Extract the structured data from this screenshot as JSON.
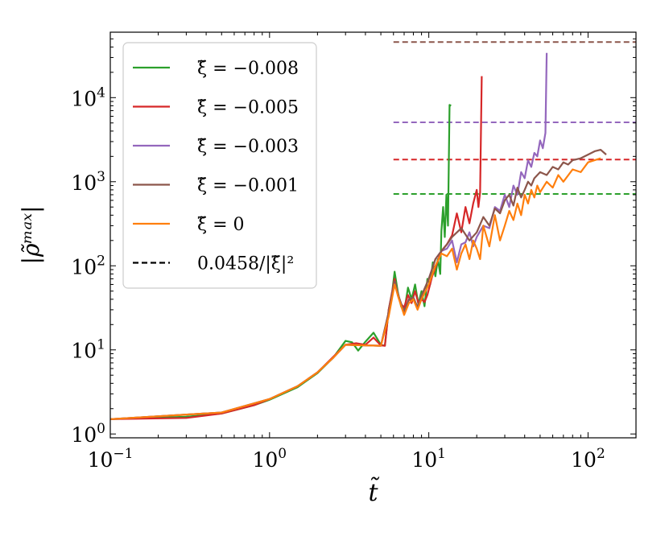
{
  "chart_data": {
    "type": "line",
    "title": "",
    "xlabel": "t̃",
    "ylabel": "|ρ̃ᵐᵃˣ|",
    "xscale": "log",
    "yscale": "log",
    "xlim": [
      0.1,
      200
    ],
    "ylim": [
      0.9,
      60000
    ],
    "grid": false,
    "legend_position": "top-left",
    "x_ticks": [
      {
        "value": 0.1,
        "base": "10",
        "exp": "−1"
      },
      {
        "value": 1,
        "base": "10",
        "exp": "0"
      },
      {
        "value": 10,
        "base": "10",
        "exp": "1"
      },
      {
        "value": 100,
        "base": "10",
        "exp": "2"
      }
    ],
    "y_ticks": [
      {
        "value": 1,
        "base": "10",
        "exp": "0"
      },
      {
        "value": 10,
        "base": "10",
        "exp": "1"
      },
      {
        "value": 100,
        "base": "10",
        "exp": "2"
      },
      {
        "value": 1000,
        "base": "10",
        "exp": "3"
      },
      {
        "value": 10000,
        "base": "10",
        "exp": "4"
      }
    ],
    "series": [
      {
        "name": "ξ̃ = −0.008",
        "color": "#2ca02c",
        "style": "solid",
        "points": [
          [
            0.1,
            1.5
          ],
          [
            0.3,
            1.6
          ],
          [
            0.5,
            1.75
          ],
          [
            0.8,
            2.2
          ],
          [
            1,
            2.55
          ],
          [
            1.5,
            3.6
          ],
          [
            2,
            5.3
          ],
          [
            2.5,
            8.0
          ],
          [
            3,
            12.8
          ],
          [
            3.3,
            12.3
          ],
          [
            3.6,
            9.8
          ],
          [
            4,
            12.5
          ],
          [
            4.5,
            16.0
          ],
          [
            5,
            11.5
          ],
          [
            5.3,
            11.2
          ],
          [
            5.6,
            30
          ],
          [
            5.9,
            50
          ],
          [
            6.1,
            85
          ],
          [
            6.4,
            48
          ],
          [
            6.7,
            33
          ],
          [
            7,
            28
          ],
          [
            7.4,
            55
          ],
          [
            7.8,
            40
          ],
          [
            8.2,
            60
          ],
          [
            8.6,
            35
          ],
          [
            9,
            50
          ],
          [
            9.4,
            33
          ],
          [
            9.8,
            70
          ],
          [
            10.2,
            60
          ],
          [
            10.6,
            110
          ],
          [
            11,
            75
          ],
          [
            11.4,
            120
          ],
          [
            11.8,
            80
          ],
          [
            12,
            260
          ],
          [
            12.3,
            500
          ],
          [
            12.6,
            220
          ],
          [
            12.9,
            700
          ],
          [
            13.2,
            300
          ],
          [
            13.5,
            8200
          ],
          [
            13.8,
            8000
          ]
        ]
      },
      {
        "name": "ξ̃ = −0.005",
        "color": "#d62728",
        "style": "solid",
        "points": [
          [
            0.1,
            1.5
          ],
          [
            0.3,
            1.55
          ],
          [
            0.5,
            1.75
          ],
          [
            0.8,
            2.2
          ],
          [
            1,
            2.6
          ],
          [
            1.5,
            3.7
          ],
          [
            2,
            5.4
          ],
          [
            2.5,
            8.2
          ],
          [
            3,
            11.5
          ],
          [
            3.5,
            12.0
          ],
          [
            4,
            11.5
          ],
          [
            4.5,
            14.0
          ],
          [
            5,
            11.3
          ],
          [
            5.3,
            11.2
          ],
          [
            5.6,
            30
          ],
          [
            5.9,
            50
          ],
          [
            6.1,
            70
          ],
          [
            6.4,
            44
          ],
          [
            6.7,
            35
          ],
          [
            7,
            32
          ],
          [
            7.4,
            45
          ],
          [
            7.8,
            36
          ],
          [
            8.2,
            50
          ],
          [
            8.6,
            36
          ],
          [
            9,
            40
          ],
          [
            9.4,
            37
          ],
          [
            9.8,
            45
          ],
          [
            10.5,
            75
          ],
          [
            11,
            95
          ],
          [
            12,
            150
          ],
          [
            13,
            180
          ],
          [
            14,
            230
          ],
          [
            15,
            420
          ],
          [
            16,
            250
          ],
          [
            17,
            500
          ],
          [
            18,
            320
          ],
          [
            19,
            550
          ],
          [
            20,
            800
          ],
          [
            20.5,
            500
          ],
          [
            21,
            750
          ],
          [
            21.5,
            18000
          ]
        ]
      },
      {
        "name": "ξ̃ = −0.003",
        "color": "#9467bd",
        "style": "solid",
        "points": [
          [
            0.1,
            1.5
          ],
          [
            0.5,
            1.8
          ],
          [
            1,
            2.6
          ],
          [
            1.5,
            3.7
          ],
          [
            2,
            5.4
          ],
          [
            2.5,
            8.0
          ],
          [
            3,
            11.5
          ],
          [
            4,
            11.3
          ],
          [
            5,
            11.2
          ],
          [
            5.6,
            28
          ],
          [
            6.1,
            65
          ],
          [
            6.5,
            42
          ],
          [
            7,
            28
          ],
          [
            7.5,
            40
          ],
          [
            8,
            42
          ],
          [
            8.5,
            32
          ],
          [
            9,
            44
          ],
          [
            10,
            70
          ],
          [
            11,
            120
          ],
          [
            12,
            150
          ],
          [
            13,
            160
          ],
          [
            14,
            200
          ],
          [
            15,
            110
          ],
          [
            16,
            180
          ],
          [
            17,
            190
          ],
          [
            18,
            250
          ],
          [
            19,
            170
          ],
          [
            20,
            220
          ],
          [
            22,
            300
          ],
          [
            24,
            280
          ],
          [
            26,
            500
          ],
          [
            28,
            450
          ],
          [
            30,
            700
          ],
          [
            32,
            500
          ],
          [
            34,
            900
          ],
          [
            36,
            700
          ],
          [
            38,
            1300
          ],
          [
            40,
            1100
          ],
          [
            42,
            1800
          ],
          [
            44,
            1500
          ],
          [
            46,
            2200
          ],
          [
            48,
            2000
          ],
          [
            50,
            3100
          ],
          [
            52,
            2500
          ],
          [
            54,
            3800
          ],
          [
            55,
            34000
          ]
        ]
      },
      {
        "name": "ξ̃ = −0.001",
        "color": "#8c564b",
        "style": "solid",
        "points": [
          [
            0.1,
            1.5
          ],
          [
            0.5,
            1.8
          ],
          [
            1,
            2.6
          ],
          [
            1.5,
            3.7
          ],
          [
            2,
            5.4
          ],
          [
            2.5,
            8.0
          ],
          [
            3,
            11.5
          ],
          [
            4,
            11.3
          ],
          [
            5,
            11.2
          ],
          [
            5.6,
            28
          ],
          [
            6.1,
            65
          ],
          [
            6.5,
            42
          ],
          [
            7,
            28
          ],
          [
            7.5,
            40
          ],
          [
            8,
            42
          ],
          [
            8.5,
            32
          ],
          [
            9,
            44
          ],
          [
            10,
            70
          ],
          [
            11,
            120
          ],
          [
            12,
            150
          ],
          [
            13,
            180
          ],
          [
            14,
            220
          ],
          [
            16,
            280
          ],
          [
            18,
            200
          ],
          [
            20,
            250
          ],
          [
            22,
            380
          ],
          [
            24,
            300
          ],
          [
            26,
            480
          ],
          [
            28,
            420
          ],
          [
            30,
            600
          ],
          [
            32,
            700
          ],
          [
            34,
            520
          ],
          [
            36,
            850
          ],
          [
            38,
            650
          ],
          [
            40,
            800
          ],
          [
            42,
            1000
          ],
          [
            44,
            900
          ],
          [
            46,
            1100
          ],
          [
            50,
            1300
          ],
          [
            55,
            1200
          ],
          [
            60,
            1500
          ],
          [
            65,
            1400
          ],
          [
            70,
            1700
          ],
          [
            75,
            1600
          ],
          [
            80,
            1800
          ],
          [
            90,
            1900
          ],
          [
            100,
            2100
          ],
          [
            110,
            2300
          ],
          [
            120,
            2400
          ],
          [
            130,
            2100
          ]
        ]
      },
      {
        "name": "ξ̃ = 0",
        "color": "#ff7f0e",
        "style": "solid",
        "points": [
          [
            0.1,
            1.5
          ],
          [
            0.5,
            1.8
          ],
          [
            1,
            2.6
          ],
          [
            1.5,
            3.7
          ],
          [
            2,
            5.4
          ],
          [
            2.5,
            8.0
          ],
          [
            3,
            11.5
          ],
          [
            4,
            11.3
          ],
          [
            5,
            11.2
          ],
          [
            5.6,
            25
          ],
          [
            6.1,
            60
          ],
          [
            6.5,
            40
          ],
          [
            7,
            26
          ],
          [
            7.5,
            36
          ],
          [
            8,
            40
          ],
          [
            8.5,
            30
          ],
          [
            9,
            40
          ],
          [
            10,
            60
          ],
          [
            11,
            100
          ],
          [
            12,
            140
          ],
          [
            13,
            130
          ],
          [
            14,
            160
          ],
          [
            15,
            90
          ],
          [
            16,
            140
          ],
          [
            17,
            180
          ],
          [
            18,
            120
          ],
          [
            19,
            200
          ],
          [
            20,
            160
          ],
          [
            21,
            120
          ],
          [
            22,
            300
          ],
          [
            24,
            170
          ],
          [
            26,
            400
          ],
          [
            28,
            200
          ],
          [
            30,
            300
          ],
          [
            32,
            450
          ],
          [
            34,
            350
          ],
          [
            36,
            550
          ],
          [
            38,
            400
          ],
          [
            40,
            700
          ],
          [
            42,
            550
          ],
          [
            44,
            800
          ],
          [
            46,
            650
          ],
          [
            48,
            900
          ],
          [
            50,
            750
          ],
          [
            55,
            1000
          ],
          [
            60,
            850
          ],
          [
            65,
            1200
          ],
          [
            70,
            1000
          ],
          [
            80,
            1400
          ],
          [
            90,
            1300
          ],
          [
            100,
            1700
          ],
          [
            110,
            1800
          ],
          [
            120,
            1900
          ]
        ]
      },
      {
        "name": "0.0458/|ξ̃|²",
        "color": "#000000",
        "style": "dashed",
        "points": []
      }
    ],
    "reference_lines": [
      {
        "color": "#2ca02c",
        "y": 716,
        "x_start": 6,
        "x_end": 200
      },
      {
        "color": "#d62728",
        "y": 1832,
        "x_start": 6,
        "x_end": 200
      },
      {
        "color": "#9467bd",
        "y": 5089,
        "x_start": 6,
        "x_end": 200
      },
      {
        "color": "#8c564b",
        "y": 45800,
        "x_start": 6,
        "x_end": 200
      }
    ]
  }
}
